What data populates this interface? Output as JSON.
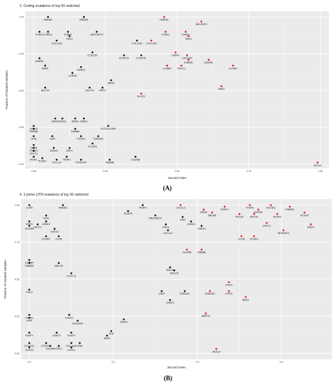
{
  "colors": {
    "panel_bg": "#ebebeb",
    "grid": "#ffffff",
    "black_point": "#111111",
    "red_point": "#e41a1c"
  },
  "chart_data": [
    {
      "type": "scatter",
      "title": "2. Coding mutations of top 50 switched",
      "caption": "(A)",
      "xlabel": "Jaccard index",
      "ylabel": "Fraction of mutated samples",
      "xlim": [
        -0.03,
        1.03
      ],
      "ylim": [
        -0.03,
        1.04
      ],
      "xticks": [
        "0.00",
        "0.25",
        "0.50",
        "0.75",
        "1.00"
      ],
      "xtick_values": [
        0,
        0.25,
        0.5,
        0.75,
        1.0
      ],
      "yticks": [
        "0.00",
        "0.25",
        "0.50",
        "0.75",
        "1.00"
      ],
      "ytick_values": [
        0,
        0.25,
        0.5,
        0.75,
        1.0
      ],
      "grid": true,
      "points": [
        {
          "label": "HMGB1",
          "x": 0.05,
          "y": 1.0,
          "c": "k"
        },
        {
          "label": "HMGB1",
          "x": 0.175,
          "y": 1.0,
          "c": "k"
        },
        {
          "label": "HMGB1",
          "x": 0.455,
          "y": 1.0,
          "c": "r"
        },
        {
          "label": "NDUFAF4",
          "x": 0.585,
          "y": 0.97,
          "c": "r"
        },
        {
          "label": "CHEK1",
          "x": 0.02,
          "y": 0.9,
          "c": "k"
        },
        {
          "label": "CHEK1",
          "x": 0.05,
          "y": 0.9,
          "c": "k"
        },
        {
          "label": "CHEK1",
          "x": 0.12,
          "y": 0.9,
          "c": "k"
        },
        {
          "label": "ARHGEF37",
          "x": 0.22,
          "y": 0.9,
          "c": "k"
        },
        {
          "label": "CHEK1",
          "x": 0.46,
          "y": 0.9,
          "c": "r"
        },
        {
          "label": "CHEK1",
          "x": 0.53,
          "y": 0.9,
          "c": "r"
        },
        {
          "label": "SNX1",
          "x": 0.125,
          "y": 0.87,
          "c": "k"
        },
        {
          "label": "SNX1",
          "x": 0.54,
          "y": 0.87,
          "c": "r"
        },
        {
          "label": "COL11A2",
          "x": 0.08,
          "y": 0.84,
          "c": "k"
        },
        {
          "label": "COL11A2",
          "x": 0.36,
          "y": 0.84,
          "c": "k"
        },
        {
          "label": "COL11A2",
          "x": 0.41,
          "y": 0.84,
          "c": "r"
        },
        {
          "label": "CCDC51",
          "x": 0.205,
          "y": 0.76,
          "c": "k"
        },
        {
          "label": "CCDC51",
          "x": 0.315,
          "y": 0.74,
          "c": "k"
        },
        {
          "label": "CCDC51",
          "x": 0.375,
          "y": 0.74,
          "c": "k"
        },
        {
          "label": "LAMA1",
          "x": 0.495,
          "y": 0.76,
          "c": "r"
        },
        {
          "label": "CCDC50",
          "x": 0.535,
          "y": 0.74,
          "c": "r"
        },
        {
          "label": "CAB39L",
          "x": 0.02,
          "y": 0.72,
          "c": "k"
        },
        {
          "label": "CAB39L",
          "x": 0.54,
          "y": 0.71,
          "c": "r"
        },
        {
          "label": "CAB39L",
          "x": 0.61,
          "y": 0.71,
          "c": "r"
        },
        {
          "label": "MSR1",
          "x": 0.04,
          "y": 0.67,
          "c": "k"
        },
        {
          "label": "AGBL5",
          "x": 0.165,
          "y": 0.66,
          "c": "k"
        },
        {
          "label": "LILRB4",
          "x": 0.135,
          "y": 0.62,
          "c": "k"
        },
        {
          "label": "LILRB4",
          "x": 0.465,
          "y": 0.67,
          "c": "r"
        },
        {
          "label": "CRTC1",
          "x": 0.515,
          "y": 0.67,
          "c": "r"
        },
        {
          "label": "LILRB4",
          "x": 0.695,
          "y": 0.67,
          "c": "r"
        },
        {
          "label": "NALCN",
          "x": 0.04,
          "y": 0.52,
          "c": "k"
        },
        {
          "label": "NALCN",
          "x": 0.195,
          "y": 0.52,
          "c": "k"
        },
        {
          "label": "NEK2",
          "x": 0.24,
          "y": 0.52,
          "c": "k"
        },
        {
          "label": "ARSD",
          "x": 0.27,
          "y": 0.57,
          "c": "k"
        },
        {
          "label": "NEK2",
          "x": 0.655,
          "y": 0.53,
          "c": "r"
        },
        {
          "label": "SHLD1",
          "x": 0.375,
          "y": 0.48,
          "c": "r"
        },
        {
          "label": "GRIA1",
          "x": 0.075,
          "y": 0.31,
          "c": "k"
        },
        {
          "label": "GRIA1",
          "x": 0.1,
          "y": 0.31,
          "c": "k"
        },
        {
          "label": "GRIA1",
          "x": 0.145,
          "y": 0.31,
          "c": "k"
        },
        {
          "label": "GRIA1",
          "x": 0.175,
          "y": 0.31,
          "c": "k"
        },
        {
          "label": "AGBL5",
          "x": 0.0,
          "y": 0.26,
          "c": "k"
        },
        {
          "label": "RAB6B",
          "x": 0.0,
          "y": 0.24,
          "c": "k"
        },
        {
          "label": "RAB6B",
          "x": 0.145,
          "y": 0.24,
          "c": "k"
        },
        {
          "label": "SLC22A18AS",
          "x": 0.26,
          "y": 0.26,
          "c": "k"
        },
        {
          "label": "GSN",
          "x": 0.0,
          "y": 0.19,
          "c": "k"
        },
        {
          "label": "GSN",
          "x": 0.065,
          "y": 0.19,
          "c": "k"
        },
        {
          "label": "PCSK2",
          "x": 0.165,
          "y": 0.19,
          "c": "k"
        },
        {
          "label": "CDKN2C",
          "x": 0.225,
          "y": 0.19,
          "c": "k"
        },
        {
          "label": "COL5A1",
          "x": 0.205,
          "y": 0.14,
          "c": "k"
        },
        {
          "label": "CLPB",
          "x": 0.0,
          "y": 0.13,
          "c": "k"
        },
        {
          "label": "CHEK1",
          "x": 0.0,
          "y": 0.11,
          "c": "k"
        },
        {
          "label": "AGBL5",
          "x": 0.07,
          "y": 0.11,
          "c": "k"
        },
        {
          "label": "SNX1",
          "x": 0.125,
          "y": 0.11,
          "c": "k"
        },
        {
          "label": "CRTC1",
          "x": 0.0,
          "y": 0.09,
          "c": "k"
        },
        {
          "label": "MSR1",
          "x": 0.0,
          "y": 0.05,
          "c": "k"
        },
        {
          "label": "PCSK2",
          "x": 0.03,
          "y": 0.04,
          "c": "k"
        },
        {
          "label": "TFDP2",
          "x": 0.115,
          "y": 0.05,
          "c": "k"
        },
        {
          "label": "CXCL12",
          "x": 0.08,
          "y": 0.03,
          "c": "k"
        },
        {
          "label": "SYNCRIP",
          "x": 0.165,
          "y": 0.03,
          "c": "k"
        },
        {
          "label": "RAB6B",
          "x": 0.265,
          "y": 0.03,
          "c": "k"
        },
        {
          "label": "C2orf68",
          "x": 0.355,
          "y": 0.05,
          "c": "k"
        },
        {
          "label": "PEX19",
          "x": 0.99,
          "y": 0.01,
          "c": "r"
        }
      ]
    },
    {
      "type": "scatter",
      "title": "4. 3 prime UTR mutations of top 50 switched",
      "caption": "(B)",
      "xlabel": "Jaccard index",
      "ylabel": "Fraction of mutated samples",
      "xlim": [
        -0.02,
        0.72
      ],
      "ylim": [
        -0.04,
        1.04
      ],
      "xticks": [
        "0.0",
        "0.2",
        "0.4",
        "0.6"
      ],
      "xtick_values": [
        0,
        0.2,
        0.4,
        0.6
      ],
      "yticks": [
        "0.00",
        "0.25",
        "0.50",
        "0.75",
        "1.00"
      ],
      "ytick_values": [
        0,
        0.25,
        0.5,
        0.75,
        1.0
      ],
      "grid": true,
      "points": [
        {
          "label": "CLPB",
          "x": 0.0,
          "y": 1.0,
          "c": "k"
        },
        {
          "label": "HMGB1",
          "x": 0.08,
          "y": 1.0,
          "c": "k"
        },
        {
          "label": "TFDP2",
          "x": 0.27,
          "y": 1.0,
          "c": "k"
        },
        {
          "label": "CXCL12",
          "x": 0.36,
          "y": 1.0,
          "c": "r"
        },
        {
          "label": "PCGF5",
          "x": 0.235,
          "y": 0.96,
          "c": "k"
        },
        {
          "label": "ARHGEF37",
          "x": 0.3,
          "y": 0.93,
          "c": "k"
        },
        {
          "label": "H2AFV",
          "x": 0.465,
          "y": 0.99,
          "c": "r"
        },
        {
          "label": "TFDP2",
          "x": 0.525,
          "y": 1.0,
          "c": "r"
        },
        {
          "label": "COL5A1",
          "x": 0.575,
          "y": 1.0,
          "c": "r"
        },
        {
          "label": "CAB39L",
          "x": 0.62,
          "y": 0.99,
          "c": "r"
        },
        {
          "label": "SAP30L",
          "x": 0.545,
          "y": 0.97,
          "c": "r"
        },
        {
          "label": "ARSD",
          "x": 0.415,
          "y": 0.97,
          "c": "r"
        },
        {
          "label": "ABCA9",
          "x": 0.435,
          "y": 0.95,
          "c": "r"
        },
        {
          "label": "PEX19",
          "x": 0.5,
          "y": 0.94,
          "c": "r"
        },
        {
          "label": "PEX19",
          "x": 0.535,
          "y": 0.94,
          "c": "r"
        },
        {
          "label": "GLRX2",
          "x": 0.59,
          "y": 0.94,
          "c": "r"
        },
        {
          "label": "PCGF5",
          "x": 0.655,
          "y": 0.95,
          "c": "r"
        },
        {
          "label": "GSN",
          "x": 0.04,
          "y": 0.93,
          "c": "k"
        },
        {
          "label": "GSN",
          "x": 0.365,
          "y": 0.92,
          "c": "k"
        },
        {
          "label": "MSR1",
          "x": 0.0,
          "y": 0.89,
          "c": "k"
        },
        {
          "label": "AGBL5",
          "x": 0.04,
          "y": 0.89,
          "c": "k"
        },
        {
          "label": "AGBL5",
          "x": 0.385,
          "y": 0.89,
          "c": "k"
        },
        {
          "label": "CRTC1",
          "x": 0.02,
          "y": 0.87,
          "c": "k"
        },
        {
          "label": "C2orf68",
          "x": 0.0,
          "y": 0.86,
          "c": "k"
        },
        {
          "label": "CHEK1",
          "x": 0.06,
          "y": 0.84,
          "c": "k"
        },
        {
          "label": "PDK3",
          "x": 0.325,
          "y": 0.87,
          "c": "k"
        },
        {
          "label": "CHEK1",
          "x": 0.41,
          "y": 0.86,
          "c": "k"
        },
        {
          "label": "CRTC1",
          "x": 0.565,
          "y": 0.88,
          "c": "r"
        },
        {
          "label": "MSR1",
          "x": 0.67,
          "y": 0.87,
          "c": "r"
        },
        {
          "label": "CXCL12",
          "x": 0.33,
          "y": 0.83,
          "c": "k"
        },
        {
          "label": "NDUFAF4",
          "x": 0.605,
          "y": 0.83,
          "c": "r"
        },
        {
          "label": "PCSK2",
          "x": 0.04,
          "y": 0.79,
          "c": "k"
        },
        {
          "label": "CLPB",
          "x": 0.07,
          "y": 0.79,
          "c": "k"
        },
        {
          "label": "CLPB",
          "x": 0.505,
          "y": 0.79,
          "c": "r"
        },
        {
          "label": "PCSK2",
          "x": 0.535,
          "y": 0.79,
          "c": "r"
        },
        {
          "label": "C2orf68",
          "x": 0.375,
          "y": 0.7,
          "c": "r"
        },
        {
          "label": "RAB6B",
          "x": 0.41,
          "y": 0.7,
          "c": "r"
        },
        {
          "label": "LILRB4",
          "x": 0.0,
          "y": 0.63,
          "c": "k"
        },
        {
          "label": "RAB6B",
          "x": 0.0,
          "y": 0.61,
          "c": "k"
        },
        {
          "label": "NALCN",
          "x": 0.07,
          "y": 0.61,
          "c": "k"
        },
        {
          "label": "CXCL12",
          "x": 0.1,
          "y": 0.54,
          "c": "k"
        },
        {
          "label": "SHLD1",
          "x": 0.335,
          "y": 0.58,
          "c": "k"
        },
        {
          "label": "NALCN",
          "x": 0.345,
          "y": 0.56,
          "c": "k"
        },
        {
          "label": "PDK3",
          "x": 0.0,
          "y": 0.43,
          "c": "k"
        },
        {
          "label": "LRAT",
          "x": 0.315,
          "y": 0.42,
          "c": "k"
        },
        {
          "label": "CDKN2C",
          "x": 0.37,
          "y": 0.42,
          "c": "k"
        },
        {
          "label": "CDKN2C",
          "x": 0.43,
          "y": 0.42,
          "c": "r"
        },
        {
          "label": "LYPD1",
          "x": 0.475,
          "y": 0.42,
          "c": "r"
        },
        {
          "label": "LYPD1",
          "x": 0.475,
          "y": 0.48,
          "c": "r"
        },
        {
          "label": "NEK2",
          "x": 0.515,
          "y": 0.38,
          "c": "r"
        },
        {
          "label": "CHEK1",
          "x": 0.335,
          "y": 0.36,
          "c": "k"
        },
        {
          "label": "MMP13",
          "x": 0.42,
          "y": 0.27,
          "c": "r"
        },
        {
          "label": "CHEK1",
          "x": 0.0,
          "y": 0.26,
          "c": "k"
        },
        {
          "label": "LRAT",
          "x": 0.0,
          "y": 0.24,
          "c": "k"
        },
        {
          "label": "CHEK1",
          "x": 0.095,
          "y": 0.26,
          "c": "k"
        },
        {
          "label": "SYNCRIP",
          "x": 0.115,
          "y": 0.22,
          "c": "k"
        },
        {
          "label": "GRIA1",
          "x": 0.225,
          "y": 0.23,
          "c": "k"
        },
        {
          "label": "H2AFV",
          "x": 0.0,
          "y": 0.14,
          "c": "k"
        },
        {
          "label": "H2AFV",
          "x": 0.065,
          "y": 0.14,
          "c": "k"
        },
        {
          "label": "H2AFV",
          "x": 0.1,
          "y": 0.14,
          "c": "k"
        },
        {
          "label": "SDS",
          "x": 0.195,
          "y": 0.15,
          "c": "k"
        },
        {
          "label": "NEK2",
          "x": 0.185,
          "y": 0.12,
          "c": "k"
        },
        {
          "label": "CCDC51",
          "x": 0.0,
          "y": 0.07,
          "c": "k"
        },
        {
          "label": "GLRX2",
          "x": 0.0,
          "y": 0.04,
          "c": "k"
        },
        {
          "label": "CCDC51",
          "x": 0.04,
          "y": 0.07,
          "c": "k"
        },
        {
          "label": "C2orf68",
          "x": 0.05,
          "y": 0.05,
          "c": "k"
        },
        {
          "label": "PDK3",
          "x": 0.07,
          "y": 0.05,
          "c": "k"
        },
        {
          "label": "COL11A2",
          "x": 0.1,
          "y": 0.07,
          "c": "k"
        },
        {
          "label": "GSN",
          "x": 0.12,
          "y": 0.07,
          "c": "k"
        },
        {
          "label": "LYPD1",
          "x": 0.1,
          "y": 0.04,
          "c": "k"
        },
        {
          "label": "PEX19",
          "x": 0.445,
          "y": 0.03,
          "c": "r"
        }
      ]
    }
  ]
}
